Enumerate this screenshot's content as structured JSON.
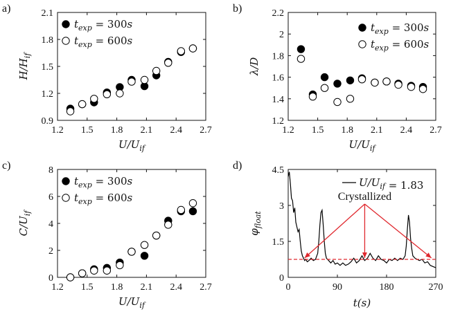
{
  "chart_data": [
    {
      "id": "a",
      "panel_label": "a)",
      "type": "scatter",
      "xlabel": "U/U_if",
      "ylabel": "H/H_if",
      "xlim": [
        1.2,
        2.7
      ],
      "ylim": [
        0.9,
        2.1
      ],
      "xticks": [
        "1.2",
        "1.5",
        "1.8",
        "2.1",
        "2.4",
        "2.7"
      ],
      "yticks": [
        "0.9",
        "1.2",
        "1.5",
        "1.8",
        "2.1"
      ],
      "legend_position": "top-left",
      "series": [
        {
          "name": "t_exp = 300s",
          "marker": "filled",
          "x": [
            1.33,
            1.45,
            1.57,
            1.7,
            1.83,
            1.95,
            2.08,
            2.2,
            2.32,
            2.45,
            2.57
          ],
          "y": [
            1.03,
            1.08,
            1.1,
            1.21,
            1.27,
            1.35,
            1.28,
            1.4,
            1.55,
            1.66,
            1.7
          ]
        },
        {
          "name": "t_exp = 600s",
          "marker": "open",
          "x": [
            1.33,
            1.45,
            1.57,
            1.7,
            1.83,
            1.95,
            2.08,
            2.2,
            2.32,
            2.45,
            2.57
          ],
          "y": [
            1.0,
            1.08,
            1.14,
            1.19,
            1.2,
            1.33,
            1.35,
            1.45,
            1.54,
            1.67,
            1.7
          ]
        }
      ]
    },
    {
      "id": "b",
      "panel_label": "b)",
      "type": "scatter",
      "xlabel": "U/U_if",
      "ylabel": "λ/D",
      "xlim": [
        1.2,
        2.7
      ],
      "ylim": [
        1.2,
        2.2
      ],
      "xticks": [
        "1.2",
        "1.5",
        "1.8",
        "2.1",
        "2.4",
        "2.7"
      ],
      "yticks": [
        "1.2",
        "1.4",
        "1.6",
        "1.8",
        "2",
        "2.2"
      ],
      "legend_position": "top-right",
      "series": [
        {
          "name": "t_exp = 300s",
          "marker": "filled",
          "x": [
            1.33,
            1.45,
            1.57,
            1.7,
            1.83,
            1.95,
            2.08,
            2.2,
            2.32,
            2.45,
            2.57
          ],
          "y": [
            1.86,
            1.44,
            1.6,
            1.54,
            1.57,
            1.59,
            1.55,
            1.56,
            1.54,
            1.52,
            1.51
          ]
        },
        {
          "name": "t_exp = 600s",
          "marker": "open",
          "x": [
            1.33,
            1.45,
            1.57,
            1.7,
            1.83,
            1.95,
            2.08,
            2.2,
            2.32,
            2.45,
            2.57
          ],
          "y": [
            1.77,
            1.42,
            1.5,
            1.37,
            1.4,
            1.58,
            1.55,
            1.56,
            1.53,
            1.51,
            1.49
          ]
        }
      ]
    },
    {
      "id": "c",
      "panel_label": "c)",
      "type": "scatter",
      "xlabel": "U/U_if",
      "ylabel": "C/U_if",
      "xlim": [
        1.2,
        2.7
      ],
      "ylim": [
        0,
        8
      ],
      "xticks": [
        "1.2",
        "1.5",
        "1.8",
        "2.1",
        "2.4",
        "2.7"
      ],
      "yticks": [
        "0",
        "2",
        "4",
        "6",
        "8"
      ],
      "legend_position": "top-left",
      "series": [
        {
          "name": "t_exp = 300s",
          "marker": "filled",
          "x": [
            1.33,
            1.45,
            1.57,
            1.7,
            1.83,
            1.95,
            2.08,
            2.2,
            2.32,
            2.45,
            2.57
          ],
          "y": [
            0.0,
            0.3,
            0.6,
            0.7,
            1.1,
            1.9,
            1.6,
            3.1,
            4.2,
            4.9,
            4.9
          ]
        },
        {
          "name": "t_exp = 600s",
          "marker": "open",
          "x": [
            1.33,
            1.45,
            1.57,
            1.7,
            1.83,
            1.95,
            2.08,
            2.2,
            2.32,
            2.45,
            2.57
          ],
          "y": [
            0.0,
            0.3,
            0.5,
            0.5,
            0.9,
            1.9,
            2.4,
            3.1,
            3.9,
            5.0,
            5.5
          ]
        }
      ]
    },
    {
      "id": "d",
      "panel_label": "d)",
      "type": "line",
      "xlabel": "t(s)",
      "ylabel": "φ_float",
      "xlim": [
        0,
        270
      ],
      "ylim": [
        0,
        4.5
      ],
      "xticks": [
        "0",
        "90",
        "180",
        "270"
      ],
      "yticks": [
        "0",
        "1.5",
        "3",
        "4.5"
      ],
      "legend_position": "top-right",
      "legend_label": "U/U_if = 1.83",
      "threshold": 0.75,
      "annotation": "Crystallized",
      "annotation_target_t": [
        30,
        140,
        262
      ],
      "series": [
        {
          "name": "U/U_if = 1.83",
          "x": [
            0,
            2,
            4,
            6,
            8,
            10,
            12,
            14,
            16,
            18,
            20,
            22,
            24,
            26,
            28,
            30,
            32,
            35,
            38,
            42,
            46,
            50,
            54,
            56,
            58,
            60,
            62,
            64,
            66,
            68,
            70,
            74,
            78,
            82,
            86,
            90,
            95,
            100,
            105,
            110,
            115,
            120,
            125,
            130,
            135,
            140,
            145,
            150,
            155,
            160,
            165,
            170,
            175,
            180,
            185,
            190,
            195,
            200,
            205,
            210,
            214,
            216,
            218,
            220,
            222,
            224,
            226,
            228,
            232,
            236,
            240,
            245,
            250,
            255,
            260,
            265,
            270
          ],
          "y": [
            4.2,
            4.4,
            3.9,
            3.3,
            3.2,
            2.7,
            2.9,
            2.3,
            2.1,
            1.9,
            2.0,
            1.5,
            1.1,
            0.9,
            0.8,
            0.7,
            0.75,
            0.65,
            0.7,
            0.8,
            0.7,
            0.75,
            1.0,
            1.5,
            2.2,
            2.7,
            2.8,
            2.2,
            1.5,
            1.0,
            0.8,
            0.7,
            0.6,
            0.7,
            0.55,
            0.6,
            0.5,
            0.6,
            0.5,
            0.55,
            0.65,
            0.8,
            0.6,
            0.7,
            0.9,
            0.7,
            0.8,
            1.0,
            0.8,
            0.7,
            0.9,
            0.75,
            0.7,
            0.6,
            0.75,
            0.7,
            0.8,
            0.7,
            0.8,
            0.75,
            0.9,
            1.3,
            2.0,
            2.6,
            2.3,
            1.6,
            1.2,
            0.9,
            0.8,
            0.75,
            0.7,
            0.75,
            0.6,
            0.65,
            0.5,
            0.45,
            0.4
          ]
        }
      ]
    }
  ]
}
